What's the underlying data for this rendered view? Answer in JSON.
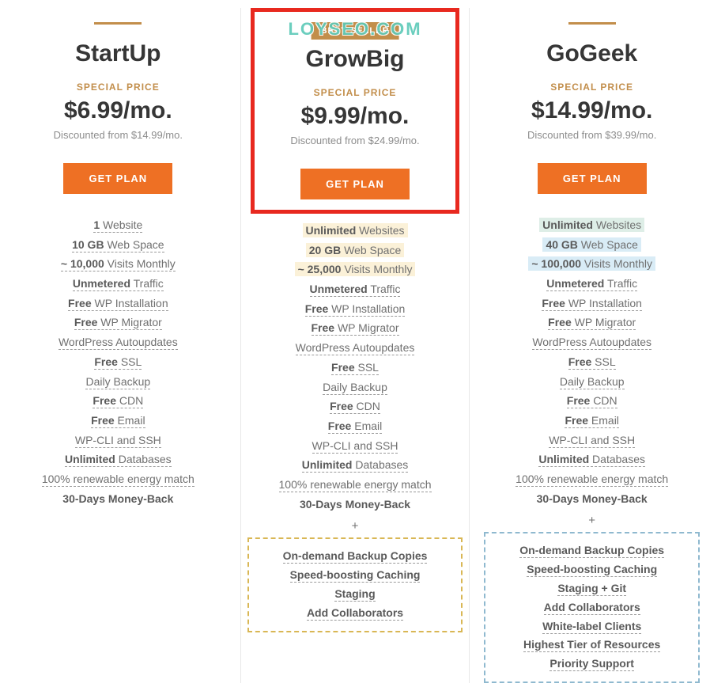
{
  "watermark": "LOYSEO.COM",
  "plans": [
    {
      "name": "StartUp",
      "special_price_label": "SPECIAL PRICE",
      "price": "$6.99/mo.",
      "discounted_from": "Discounted from $14.99/mo.",
      "button_label": "GET PLAN",
      "highlighted": false,
      "badge": "",
      "features": [
        {
          "bold": "1",
          "rest": " Website",
          "dotted": true,
          "hl": ""
        },
        {
          "bold": "10 GB",
          "rest": " Web Space",
          "dotted": true,
          "hl": ""
        },
        {
          "bold": "~ 10,000",
          "rest": " Visits Monthly",
          "dotted": true,
          "hl": ""
        },
        {
          "bold": "Unmetered",
          "rest": " Traffic",
          "dotted": true,
          "hl": ""
        },
        {
          "bold": "Free",
          "rest": " WP Installation",
          "dotted": true,
          "hl": ""
        },
        {
          "bold": "Free",
          "rest": " WP Migrator",
          "dotted": true,
          "hl": ""
        },
        {
          "bold": "",
          "rest": "WordPress Autoupdates",
          "dotted": true,
          "hl": ""
        },
        {
          "bold": "Free",
          "rest": " SSL",
          "dotted": true,
          "hl": ""
        },
        {
          "bold": "",
          "rest": "Daily Backup",
          "dotted": true,
          "hl": ""
        },
        {
          "bold": "Free",
          "rest": " CDN",
          "dotted": true,
          "hl": ""
        },
        {
          "bold": "Free",
          "rest": " Email",
          "dotted": true,
          "hl": ""
        },
        {
          "bold": "",
          "rest": "WP-CLI and SSH",
          "dotted": true,
          "hl": ""
        },
        {
          "bold": "Unlimited",
          "rest": " Databases",
          "dotted": true,
          "hl": ""
        },
        {
          "bold": "",
          "rest": "100% renewable energy match",
          "dotted": true,
          "hl": ""
        },
        {
          "bold": "30-Days",
          "rest": " ",
          "bold2": "Money-Back",
          "dotted": false,
          "hl": ""
        }
      ],
      "extras": []
    },
    {
      "name": "GrowBig",
      "special_price_label": "SPECIAL PRICE",
      "price": "$9.99/mo.",
      "discounted_from": "Discounted from $24.99/mo.",
      "button_label": "GET PLAN",
      "highlighted": true,
      "badge": "BEST SELLER",
      "features": [
        {
          "bold": "Unlimited",
          "rest": " Websites",
          "dotted": false,
          "hl": "yellow"
        },
        {
          "bold": "20 GB",
          "rest": " Web Space",
          "dotted": false,
          "hl": "yellow"
        },
        {
          "bold": "~ 25,000",
          "rest": " Visits Monthly",
          "dotted": false,
          "hl": "yellow"
        },
        {
          "bold": "Unmetered",
          "rest": " Traffic",
          "dotted": true,
          "hl": ""
        },
        {
          "bold": "Free",
          "rest": " WP Installation",
          "dotted": true,
          "hl": ""
        },
        {
          "bold": "Free",
          "rest": " WP Migrator",
          "dotted": true,
          "hl": ""
        },
        {
          "bold": "",
          "rest": "WordPress Autoupdates",
          "dotted": true,
          "hl": ""
        },
        {
          "bold": "Free",
          "rest": " SSL",
          "dotted": true,
          "hl": ""
        },
        {
          "bold": "",
          "rest": "Daily Backup",
          "dotted": true,
          "hl": ""
        },
        {
          "bold": "Free",
          "rest": " CDN",
          "dotted": true,
          "hl": ""
        },
        {
          "bold": "Free",
          "rest": " Email",
          "dotted": true,
          "hl": ""
        },
        {
          "bold": "",
          "rest": "WP-CLI and SSH",
          "dotted": true,
          "hl": ""
        },
        {
          "bold": "Unlimited",
          "rest": " Databases",
          "dotted": true,
          "hl": ""
        },
        {
          "bold": "",
          "rest": "100% renewable energy match",
          "dotted": true,
          "hl": ""
        },
        {
          "bold": "30-Days",
          "rest": " ",
          "bold2": "Money-Back",
          "dotted": false,
          "hl": ""
        }
      ],
      "extras_color": "yellow",
      "extras": [
        "On-demand Backup Copies",
        "Speed-boosting Caching",
        "Staging",
        "Add Collaborators"
      ]
    },
    {
      "name": "GoGeek",
      "special_price_label": "SPECIAL PRICE",
      "price": "$14.99/mo.",
      "discounted_from": "Discounted from $39.99/mo.",
      "button_label": "GET PLAN",
      "highlighted": false,
      "badge": "",
      "features": [
        {
          "bold": "Unlimited",
          "rest": " Websites",
          "dotted": false,
          "hl": "green"
        },
        {
          "bold": "40 GB",
          "rest": " Web Space",
          "dotted": false,
          "hl": "blue"
        },
        {
          "bold": "~ 100,000",
          "rest": " Visits Monthly",
          "dotted": false,
          "hl": "blue"
        },
        {
          "bold": "Unmetered",
          "rest": " Traffic",
          "dotted": true,
          "hl": ""
        },
        {
          "bold": "Free",
          "rest": " WP Installation",
          "dotted": true,
          "hl": ""
        },
        {
          "bold": "Free",
          "rest": " WP Migrator",
          "dotted": true,
          "hl": ""
        },
        {
          "bold": "",
          "rest": "WordPress Autoupdates",
          "dotted": true,
          "hl": ""
        },
        {
          "bold": "Free",
          "rest": " SSL",
          "dotted": true,
          "hl": ""
        },
        {
          "bold": "",
          "rest": "Daily Backup",
          "dotted": true,
          "hl": ""
        },
        {
          "bold": "Free",
          "rest": " CDN",
          "dotted": true,
          "hl": ""
        },
        {
          "bold": "Free",
          "rest": " Email",
          "dotted": true,
          "hl": ""
        },
        {
          "bold": "",
          "rest": "WP-CLI and SSH",
          "dotted": true,
          "hl": ""
        },
        {
          "bold": "Unlimited",
          "rest": " Databases",
          "dotted": true,
          "hl": ""
        },
        {
          "bold": "",
          "rest": "100% renewable energy match",
          "dotted": true,
          "hl": ""
        },
        {
          "bold": "30-Days",
          "rest": " ",
          "bold2": "Money-Back",
          "dotted": false,
          "hl": ""
        }
      ],
      "extras_color": "blue",
      "extras": [
        "On-demand Backup Copies",
        "Speed-boosting Caching",
        "Staging + Git",
        "Add Collaborators",
        "White-label Clients",
        "Highest Tier of Resources",
        "Priority Support"
      ]
    }
  ],
  "plus_symbol": "+",
  "colors": {
    "accent_orange": "#ee7024",
    "accent_gold": "#c28e4b",
    "highlight_border": "#e8291f",
    "hl_yellow": "#fbf1d8",
    "hl_green": "#deeee7",
    "hl_blue": "#d9ecf6",
    "text_dark": "#363636",
    "text_mid": "#707070",
    "text_light": "#8d8d8d"
  }
}
